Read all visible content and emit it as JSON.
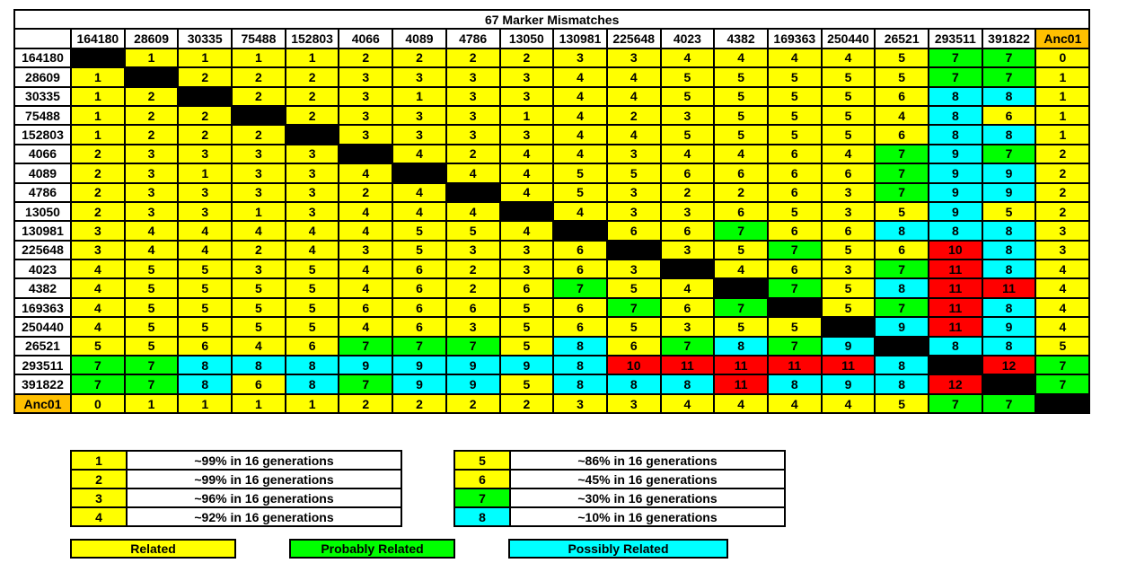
{
  "chart_data": {
    "type": "table",
    "title": "67 Marker Mismatches",
    "markers": [
      "164180",
      "28609",
      "30335",
      "75488",
      "152803",
      "4066",
      "4089",
      "4786",
      "13050",
      "130981",
      "225648",
      "4023",
      "4382",
      "169363",
      "250440",
      "26521",
      "293511",
      "391822"
    ],
    "ancestor_label": "Anc01",
    "matrix": [
      [
        null,
        1,
        1,
        1,
        1,
        2,
        2,
        2,
        2,
        3,
        3,
        4,
        4,
        4,
        4,
        5,
        7,
        7
      ],
      [
        1,
        null,
        2,
        2,
        2,
        3,
        3,
        3,
        3,
        4,
        4,
        5,
        5,
        5,
        5,
        5,
        7,
        7
      ],
      [
        1,
        2,
        null,
        2,
        2,
        3,
        1,
        3,
        3,
        4,
        4,
        5,
        5,
        5,
        5,
        6,
        8,
        8
      ],
      [
        1,
        2,
        2,
        null,
        2,
        3,
        3,
        3,
        1,
        4,
        2,
        3,
        5,
        5,
        5,
        4,
        8,
        6
      ],
      [
        1,
        2,
        2,
        2,
        null,
        3,
        3,
        3,
        3,
        4,
        4,
        5,
        5,
        5,
        5,
        6,
        8,
        8
      ],
      [
        2,
        3,
        3,
        3,
        3,
        null,
        4,
        2,
        4,
        4,
        3,
        4,
        4,
        6,
        4,
        7,
        9,
        7
      ],
      [
        2,
        3,
        1,
        3,
        3,
        4,
        null,
        4,
        4,
        5,
        5,
        6,
        6,
        6,
        6,
        7,
        9,
        9
      ],
      [
        2,
        3,
        3,
        3,
        3,
        2,
        4,
        null,
        4,
        5,
        3,
        2,
        2,
        6,
        3,
        7,
        9,
        9
      ],
      [
        2,
        3,
        3,
        1,
        3,
        4,
        4,
        4,
        null,
        4,
        3,
        3,
        6,
        5,
        3,
        5,
        9,
        5
      ],
      [
        3,
        4,
        4,
        4,
        4,
        4,
        5,
        5,
        4,
        null,
        6,
        6,
        7,
        6,
        6,
        8,
        8,
        8
      ],
      [
        3,
        4,
        4,
        2,
        4,
        3,
        5,
        3,
        3,
        6,
        null,
        3,
        5,
        7,
        5,
        6,
        10,
        8
      ],
      [
        4,
        5,
        5,
        3,
        5,
        4,
        6,
        2,
        3,
        6,
        3,
        null,
        4,
        6,
        3,
        7,
        11,
        8
      ],
      [
        4,
        5,
        5,
        5,
        5,
        4,
        6,
        2,
        6,
        7,
        5,
        4,
        null,
        7,
        5,
        8,
        11,
        11
      ],
      [
        4,
        5,
        5,
        5,
        5,
        6,
        6,
        6,
        5,
        6,
        7,
        6,
        7,
        null,
        5,
        7,
        11,
        8
      ],
      [
        4,
        5,
        5,
        5,
        5,
        4,
        6,
        3,
        5,
        6,
        5,
        3,
        5,
        5,
        null,
        9,
        11,
        9
      ],
      [
        5,
        5,
        6,
        4,
        6,
        7,
        7,
        7,
        5,
        8,
        6,
        7,
        8,
        7,
        9,
        null,
        8,
        8
      ],
      [
        7,
        7,
        8,
        8,
        8,
        9,
        9,
        9,
        9,
        8,
        10,
        11,
        11,
        11,
        11,
        8,
        null,
        12
      ],
      [
        7,
        7,
        8,
        6,
        8,
        7,
        9,
        9,
        5,
        8,
        8,
        8,
        11,
        8,
        9,
        8,
        12,
        null
      ]
    ],
    "ancestor_distances": [
      0,
      1,
      1,
      1,
      1,
      2,
      2,
      2,
      2,
      3,
      3,
      4,
      4,
      4,
      4,
      5,
      7,
      7
    ],
    "legend": [
      {
        "value": "1",
        "text": "~99% in 16 generations"
      },
      {
        "value": "2",
        "text": "~99% in 16 generations"
      },
      {
        "value": "3",
        "text": "~96% in 16 generations"
      },
      {
        "value": "4",
        "text": "~92% in 16 generations"
      },
      {
        "value": "5",
        "text": "~86% in 16 generations"
      },
      {
        "value": "6",
        "text": "~45% in 16 generations"
      },
      {
        "value": "7",
        "text": "~30% in 16 generations"
      },
      {
        "value": "8",
        "text": "~10% in 16 generations"
      }
    ],
    "categories_key": [
      {
        "label": "Related",
        "color": "#ffff00"
      },
      {
        "label": "Probably Related",
        "color": "#00ff00"
      },
      {
        "label": "Possibly Related",
        "color": "#00ffff"
      }
    ],
    "colors": {
      "related": "#ffff00",
      "probably_related": "#00ff00",
      "possibly_related": "#00ffff",
      "distant": "#ff0000",
      "diagonal": "#000000",
      "ancestor": "#ffc000"
    }
  }
}
